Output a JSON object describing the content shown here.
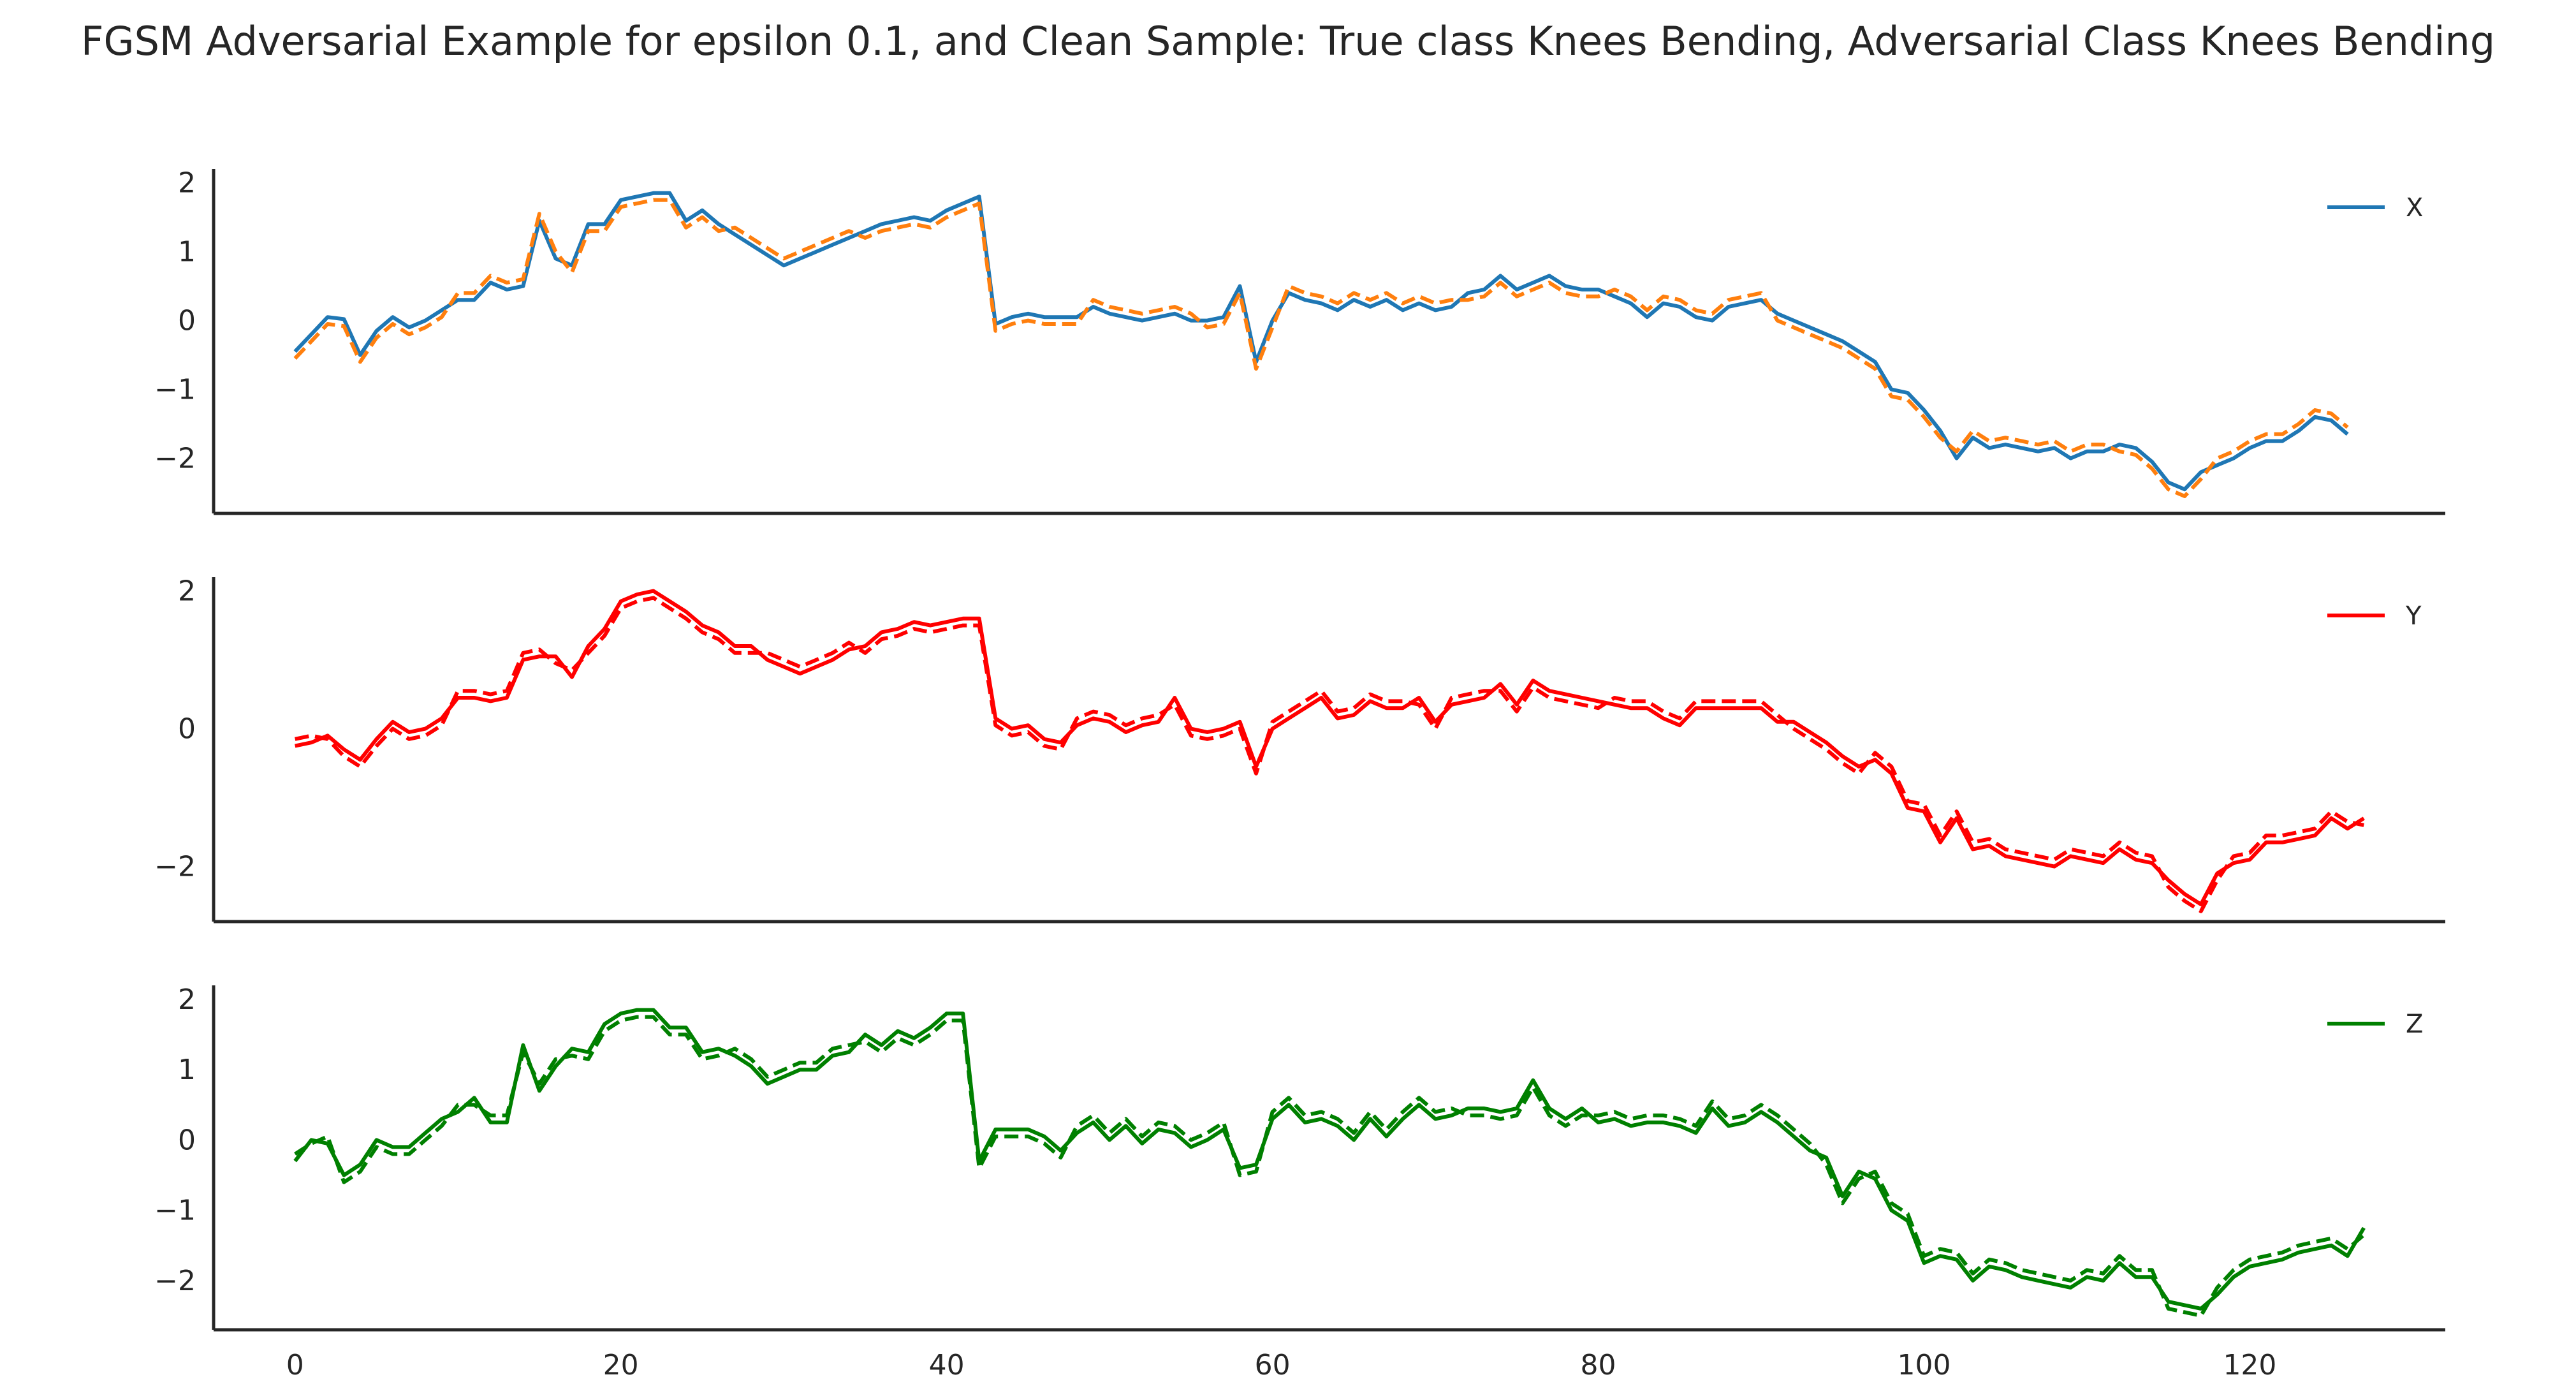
{
  "title": "FGSM Adversarial Example for epsilon 0.1, and Clean Sample: True class Knees Bending, Adversarial Class Knees Bending",
  "chart_data": [
    {
      "type": "line",
      "legend": "X",
      "legend_position": "upper-right",
      "grid": false,
      "xlim": [
        -5,
        132
      ],
      "ylim": [
        -2.8,
        2.2
      ],
      "yticks": [
        -2,
        -1,
        0,
        1,
        2
      ],
      "xticks": [],
      "color": "#1f77b4",
      "adv_color": "#ff7f0e",
      "series": [
        {
          "name": "X",
          "style": "solid",
          "values": [
            -0.45,
            -0.2,
            0.05,
            0.02,
            -0.5,
            -0.15,
            0.05,
            -0.1,
            0.0,
            0.15,
            0.3,
            0.3,
            0.55,
            0.45,
            0.5,
            1.45,
            0.9,
            0.8,
            1.4,
            1.4,
            1.75,
            1.8,
            1.85,
            1.85,
            1.45,
            1.6,
            1.4,
            1.25,
            1.1,
            0.95,
            0.8,
            0.9,
            1.0,
            1.1,
            1.2,
            1.3,
            1.4,
            1.45,
            1.5,
            1.45,
            1.6,
            1.7,
            1.8,
            -0.05,
            0.05,
            0.1,
            0.05,
            0.05,
            0.05,
            0.2,
            0.1,
            0.05,
            0.0,
            0.05,
            0.1,
            0.0,
            0.0,
            0.05,
            0.5,
            -0.6,
            0.0,
            0.4,
            0.3,
            0.25,
            0.15,
            0.3,
            0.2,
            0.3,
            0.15,
            0.25,
            0.15,
            0.2,
            0.4,
            0.45,
            0.65,
            0.45,
            0.55,
            0.65,
            0.5,
            0.45,
            0.45,
            0.35,
            0.25,
            0.05,
            0.25,
            0.2,
            0.05,
            0.0,
            0.2,
            0.25,
            0.3,
            0.1,
            0.0,
            -0.1,
            -0.2,
            -0.3,
            -0.45,
            -0.6,
            -1.0,
            -1.05,
            -1.3,
            -1.6,
            -2.0,
            -1.7,
            -1.85,
            -1.8,
            -1.85,
            -1.9,
            -1.85,
            -2.0,
            -1.9,
            -1.9,
            -1.8,
            -1.85,
            -2.05,
            -2.35,
            -2.45,
            -2.2,
            -2.1,
            -2.0,
            -1.85,
            -1.75,
            -1.75,
            -1.6,
            -1.4,
            -1.45,
            -1.65
          ]
        },
        {
          "name": "X (adversarial)",
          "style": "dashed",
          "values": [
            -0.55,
            -0.3,
            -0.05,
            -0.08,
            -0.6,
            -0.25,
            -0.05,
            -0.2,
            -0.1,
            0.05,
            0.4,
            0.4,
            0.65,
            0.55,
            0.6,
            1.55,
            1.0,
            0.7,
            1.3,
            1.3,
            1.65,
            1.7,
            1.75,
            1.75,
            1.35,
            1.5,
            1.3,
            1.35,
            1.2,
            1.05,
            0.9,
            1.0,
            1.1,
            1.2,
            1.3,
            1.2,
            1.3,
            1.35,
            1.4,
            1.35,
            1.5,
            1.6,
            1.7,
            -0.15,
            -0.05,
            0.0,
            -0.05,
            -0.05,
            -0.05,
            0.3,
            0.2,
            0.15,
            0.1,
            0.15,
            0.2,
            0.1,
            -0.1,
            -0.05,
            0.4,
            -0.7,
            -0.1,
            0.5,
            0.4,
            0.35,
            0.25,
            0.4,
            0.3,
            0.4,
            0.25,
            0.35,
            0.25,
            0.3,
            0.3,
            0.35,
            0.55,
            0.35,
            0.45,
            0.55,
            0.4,
            0.35,
            0.35,
            0.45,
            0.35,
            0.15,
            0.35,
            0.3,
            0.15,
            0.1,
            0.3,
            0.35,
            0.4,
            0.0,
            -0.1,
            -0.2,
            -0.3,
            -0.4,
            -0.55,
            -0.7,
            -1.1,
            -1.15,
            -1.4,
            -1.7,
            -1.9,
            -1.6,
            -1.75,
            -1.7,
            -1.75,
            -1.8,
            -1.75,
            -1.9,
            -1.8,
            -1.8,
            -1.9,
            -1.95,
            -2.15,
            -2.45,
            -2.55,
            -2.3,
            -2.0,
            -1.9,
            -1.75,
            -1.65,
            -1.65,
            -1.5,
            -1.3,
            -1.35,
            -1.55
          ]
        }
      ]
    },
    {
      "type": "line",
      "legend": "Y",
      "legend_position": "upper-right",
      "grid": false,
      "xlim": [
        -5,
        132
      ],
      "ylim": [
        -2.8,
        2.2
      ],
      "yticks": [
        -2,
        0,
        2
      ],
      "xticks": [],
      "color": "#ff0000",
      "adv_color": "#ff0000",
      "series": [
        {
          "name": "Y",
          "style": "solid",
          "values": [
            -0.25,
            -0.2,
            -0.1,
            -0.3,
            -0.45,
            -0.15,
            0.1,
            -0.05,
            0.0,
            0.15,
            0.45,
            0.45,
            0.4,
            0.45,
            1.0,
            1.05,
            1.05,
            0.75,
            1.2,
            1.45,
            1.85,
            1.95,
            2.0,
            1.85,
            1.7,
            1.5,
            1.4,
            1.2,
            1.2,
            1.0,
            0.9,
            0.8,
            0.9,
            1.0,
            1.15,
            1.2,
            1.4,
            1.45,
            1.55,
            1.5,
            1.55,
            1.6,
            1.6,
            0.15,
            0.0,
            0.05,
            -0.15,
            -0.2,
            0.05,
            0.15,
            0.1,
            -0.05,
            0.05,
            0.1,
            0.45,
            0.0,
            -0.05,
            0.0,
            0.1,
            -0.55,
            0.0,
            0.15,
            0.3,
            0.45,
            0.15,
            0.2,
            0.4,
            0.3,
            0.3,
            0.45,
            0.1,
            0.35,
            0.4,
            0.45,
            0.65,
            0.35,
            0.7,
            0.55,
            0.5,
            0.45,
            0.4,
            0.35,
            0.3,
            0.3,
            0.15,
            0.05,
            0.3,
            0.3,
            0.3,
            0.3,
            0.3,
            0.1,
            0.1,
            -0.05,
            -0.2,
            -0.4,
            -0.55,
            -0.45,
            -0.65,
            -1.15,
            -1.2,
            -1.65,
            -1.3,
            -1.75,
            -1.7,
            -1.85,
            -1.9,
            -1.95,
            -2.0,
            -1.85,
            -1.9,
            -1.95,
            -1.75,
            -1.9,
            -1.95,
            -2.2,
            -2.4,
            -2.55,
            -2.1,
            -1.95,
            -1.9,
            -1.65,
            -1.65,
            -1.6,
            -1.55,
            -1.3,
            -1.45,
            -1.3
          ]
        },
        {
          "name": "Y (adversarial)",
          "style": "dashed",
          "values": [
            -0.15,
            -0.1,
            -0.15,
            -0.4,
            -0.55,
            -0.25,
            0.0,
            -0.15,
            -0.1,
            0.05,
            0.55,
            0.55,
            0.5,
            0.55,
            1.1,
            1.15,
            0.95,
            0.85,
            1.1,
            1.35,
            1.75,
            1.85,
            1.9,
            1.75,
            1.6,
            1.4,
            1.3,
            1.1,
            1.1,
            1.1,
            1.0,
            0.9,
            1.0,
            1.1,
            1.25,
            1.1,
            1.3,
            1.35,
            1.45,
            1.4,
            1.45,
            1.5,
            1.5,
            0.05,
            -0.1,
            -0.05,
            -0.25,
            -0.3,
            0.15,
            0.25,
            0.2,
            0.05,
            0.15,
            0.2,
            0.35,
            -0.1,
            -0.15,
            -0.1,
            0.0,
            -0.65,
            0.1,
            0.25,
            0.4,
            0.55,
            0.25,
            0.3,
            0.5,
            0.4,
            0.4,
            0.35,
            0.0,
            0.45,
            0.5,
            0.55,
            0.55,
            0.25,
            0.6,
            0.45,
            0.4,
            0.35,
            0.3,
            0.45,
            0.4,
            0.4,
            0.25,
            0.15,
            0.4,
            0.4,
            0.4,
            0.4,
            0.4,
            0.2,
            0.0,
            -0.15,
            -0.3,
            -0.5,
            -0.65,
            -0.35,
            -0.55,
            -1.05,
            -1.1,
            -1.55,
            -1.2,
            -1.65,
            -1.6,
            -1.75,
            -1.8,
            -1.85,
            -1.9,
            -1.75,
            -1.8,
            -1.85,
            -1.65,
            -1.8,
            -1.85,
            -2.3,
            -2.5,
            -2.65,
            -2.2,
            -1.85,
            -1.8,
            -1.55,
            -1.55,
            -1.5,
            -1.45,
            -1.2,
            -1.35,
            -1.4
          ]
        }
      ]
    },
    {
      "type": "line",
      "legend": "Z",
      "legend_position": "upper-right",
      "grid": false,
      "xlim": [
        -5,
        132
      ],
      "ylim": [
        -2.7,
        2.2
      ],
      "yticks": [
        -2,
        -1,
        0,
        1,
        2
      ],
      "xticks": [
        0,
        20,
        40,
        60,
        80,
        100,
        120
      ],
      "color": "#008000",
      "adv_color": "#008000",
      "series": [
        {
          "name": "Z",
          "style": "solid",
          "values": [
            -0.3,
            0.0,
            -0.05,
            -0.5,
            -0.35,
            0.0,
            -0.1,
            -0.1,
            0.1,
            0.3,
            0.4,
            0.6,
            0.25,
            0.25,
            1.35,
            0.7,
            1.05,
            1.3,
            1.25,
            1.65,
            1.8,
            1.85,
            1.85,
            1.6,
            1.6,
            1.25,
            1.3,
            1.2,
            1.05,
            0.8,
            0.9,
            1.0,
            1.0,
            1.2,
            1.25,
            1.5,
            1.35,
            1.55,
            1.45,
            1.6,
            1.8,
            1.8,
            -0.3,
            0.15,
            0.15,
            0.15,
            0.05,
            -0.15,
            0.1,
            0.25,
            0.0,
            0.2,
            -0.05,
            0.15,
            0.1,
            -0.1,
            0.0,
            0.15,
            -0.4,
            -0.35,
            0.3,
            0.5,
            0.25,
            0.3,
            0.2,
            0.0,
            0.3,
            0.05,
            0.3,
            0.5,
            0.3,
            0.35,
            0.45,
            0.45,
            0.4,
            0.45,
            0.85,
            0.45,
            0.3,
            0.45,
            0.25,
            0.3,
            0.2,
            0.25,
            0.25,
            0.2,
            0.1,
            0.45,
            0.2,
            0.25,
            0.4,
            0.25,
            0.05,
            -0.15,
            -0.25,
            -0.8,
            -0.45,
            -0.55,
            -1.0,
            -1.15,
            -1.75,
            -1.65,
            -1.7,
            -2.0,
            -1.8,
            -1.85,
            -1.95,
            -2.0,
            -2.05,
            -2.1,
            -1.95,
            -2.0,
            -1.75,
            -1.95,
            -1.95,
            -2.3,
            -2.35,
            -2.4,
            -2.2,
            -1.95,
            -1.8,
            -1.75,
            -1.7,
            -1.6,
            -1.55,
            -1.5,
            -1.65,
            -1.25
          ]
        },
        {
          "name": "Z (adversarial)",
          "style": "dashed",
          "values": [
            -0.2,
            -0.05,
            0.05,
            -0.6,
            -0.45,
            -0.1,
            -0.2,
            -0.2,
            0.0,
            0.2,
            0.5,
            0.5,
            0.35,
            0.35,
            1.25,
            0.8,
            1.15,
            1.2,
            1.15,
            1.55,
            1.7,
            1.75,
            1.75,
            1.5,
            1.5,
            1.15,
            1.2,
            1.3,
            1.15,
            0.9,
            1.0,
            1.1,
            1.1,
            1.3,
            1.35,
            1.4,
            1.25,
            1.45,
            1.35,
            1.5,
            1.7,
            1.7,
            -0.4,
            0.05,
            0.05,
            0.05,
            -0.05,
            -0.25,
            0.2,
            0.35,
            0.1,
            0.3,
            0.05,
            0.25,
            0.2,
            0.0,
            0.1,
            0.25,
            -0.5,
            -0.45,
            0.4,
            0.6,
            0.35,
            0.4,
            0.3,
            0.1,
            0.4,
            0.15,
            0.4,
            0.6,
            0.4,
            0.45,
            0.35,
            0.35,
            0.3,
            0.35,
            0.75,
            0.35,
            0.2,
            0.35,
            0.35,
            0.4,
            0.3,
            0.35,
            0.35,
            0.3,
            0.2,
            0.55,
            0.3,
            0.35,
            0.5,
            0.35,
            0.15,
            -0.05,
            -0.35,
            -0.9,
            -0.55,
            -0.45,
            -0.9,
            -1.05,
            -1.65,
            -1.55,
            -1.6,
            -1.9,
            -1.7,
            -1.75,
            -1.85,
            -1.9,
            -1.95,
            -2.0,
            -1.85,
            -1.9,
            -1.65,
            -1.85,
            -1.85,
            -2.4,
            -2.45,
            -2.5,
            -2.1,
            -1.85,
            -1.7,
            -1.65,
            -1.6,
            -1.5,
            -1.45,
            -1.4,
            -1.55,
            -1.35
          ]
        }
      ]
    }
  ]
}
